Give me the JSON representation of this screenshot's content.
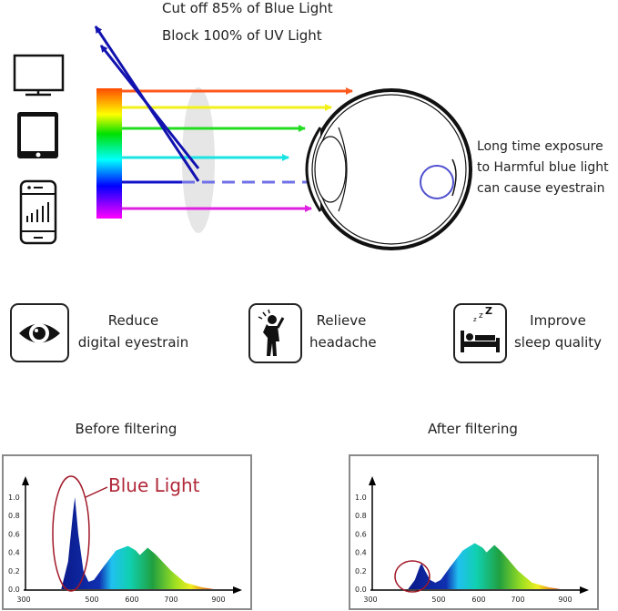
{
  "top": {
    "line1": "Cut off 85% of Blue Light",
    "line2": "Block 100% of UV Light",
    "side_text": [
      "Long time exposure",
      "to Harmful blue light",
      "can cause eyestrain"
    ],
    "devices": [
      "monitor-icon",
      "tablet-icon",
      "phone-icon"
    ],
    "ray_colors": [
      "#ff5a1e",
      "#f2f21a",
      "#22dd22",
      "#19e3e3",
      "#1212c8",
      "#e020e0"
    ]
  },
  "benefits": [
    {
      "icon": "eye-icon",
      "line1": "Reduce",
      "line2": "digital eyestrain"
    },
    {
      "icon": "headache-icon",
      "line1": "Relieve",
      "line2": "headache"
    },
    {
      "icon": "sleep-icon",
      "line1": "Improve",
      "line2": "sleep quality"
    }
  ],
  "chart_data": [
    {
      "type": "area",
      "title": "Before filtering",
      "annotation": "Blue Light",
      "x_ticks": [
        "300",
        "500",
        "600",
        "700",
        "900"
      ],
      "y_ticks": [
        "0.0",
        "0.2",
        "0.4",
        "0.6",
        "0.8",
        "1.0"
      ],
      "ylim": [
        0,
        1.1
      ],
      "x": [
        410,
        430,
        445,
        450,
        460,
        475,
        490,
        505,
        530,
        560,
        590,
        610,
        620,
        640,
        660,
        700,
        760,
        830,
        880
      ],
      "y": [
        0,
        0.3,
        0.85,
        1.0,
        0.6,
        0.2,
        0.08,
        0.1,
        0.25,
        0.42,
        0.47,
        0.42,
        0.37,
        0.45,
        0.38,
        0.2,
        0.07,
        0.02,
        0
      ]
    },
    {
      "type": "area",
      "title": "After filtering",
      "x_ticks": [
        "300",
        "500",
        "600",
        "700",
        "900"
      ],
      "y_ticks": [
        "0.0",
        "0.2",
        "0.4",
        "0.6",
        "0.8",
        "1.0"
      ],
      "ylim": [
        0,
        1.1
      ],
      "x": [
        410,
        430,
        445,
        450,
        460,
        475,
        490,
        505,
        530,
        560,
        590,
        610,
        620,
        640,
        660,
        700,
        760,
        830,
        880
      ],
      "y": [
        0,
        0.1,
        0.25,
        0.28,
        0.2,
        0.1,
        0.07,
        0.1,
        0.25,
        0.42,
        0.5,
        0.45,
        0.4,
        0.48,
        0.4,
        0.2,
        0.07,
        0.02,
        0
      ]
    }
  ]
}
